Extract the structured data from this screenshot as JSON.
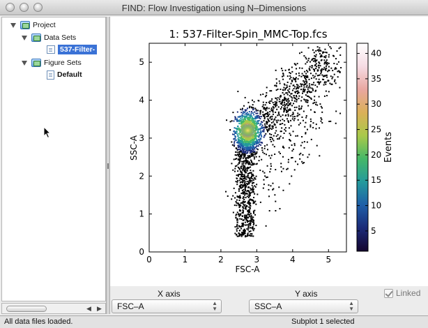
{
  "window": {
    "title": "FIND: Flow Investigation using N–Dimensions"
  },
  "tree": {
    "project": "Project",
    "data_sets": "Data Sets",
    "data_file": "537-Filter-",
    "figure_sets": "Figure Sets",
    "figure_default": "Default"
  },
  "controls": {
    "x_axis_label": "X axis",
    "x_axis_value": "FSC–A",
    "y_axis_label": "Y axis",
    "y_axis_value": "SSC–A",
    "linked_label": "Linked",
    "linked_checked": true
  },
  "status": {
    "left": "All data files loaded.",
    "right": "Subplot 1 selected"
  },
  "chart_data": {
    "type": "scatter",
    "title": "1: 537-Filter-Spin_MMC-Top.fcs",
    "xlabel": "FSC-A",
    "ylabel": "SSC-A",
    "xlim": [
      0,
      5.5
    ],
    "ylim": [
      0,
      5.5
    ],
    "xticks": [
      "0",
      "1",
      "2",
      "3",
      "4",
      "5"
    ],
    "yticks": [
      "0",
      "1",
      "2",
      "3",
      "4",
      "5"
    ],
    "density_peak": {
      "x": 2.75,
      "y": 3.2
    },
    "colorbar": {
      "label": "Events",
      "range": [
        1,
        42
      ],
      "ticks": [
        "5",
        "10",
        "15",
        "20",
        "25",
        "30",
        "35",
        "40"
      ],
      "colors": [
        "#14052e",
        "#1b2a78",
        "#1f5fa8",
        "#249a9c",
        "#45b868",
        "#a9c94a",
        "#dbb058",
        "#e9a7a0",
        "#f6dce4",
        "#ffffff"
      ]
    },
    "grid": false
  }
}
